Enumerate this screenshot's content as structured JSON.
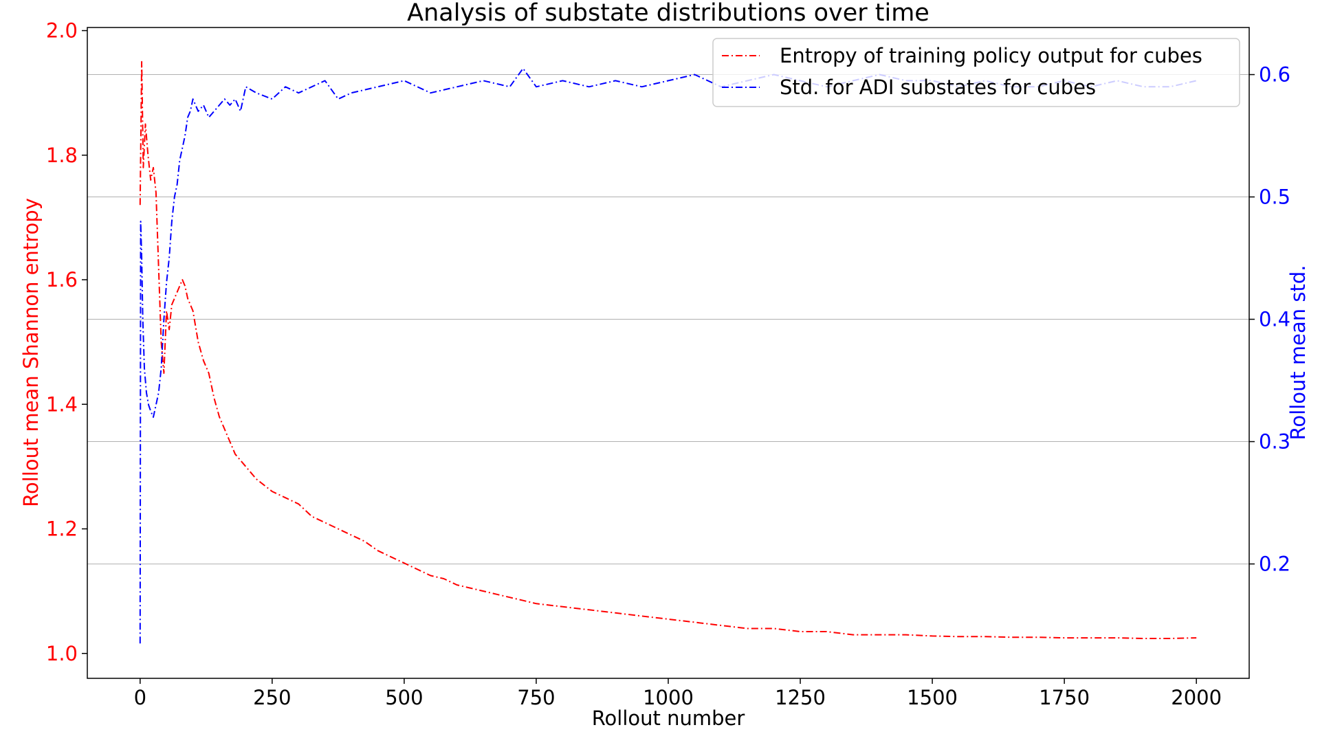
{
  "chart_data": {
    "type": "line",
    "title": "Analysis of substate distributions over time",
    "xlabel": "Rollout number",
    "ylabel_left": "Rollout mean Shannon entropy",
    "ylabel_right": "Rollout mean std.",
    "xlim": [
      -100,
      2100
    ],
    "ylim_left": [
      0.96,
      2.005
    ],
    "ylim_right": [
      0.1065,
      0.6385
    ],
    "xticks": [
      0,
      250,
      500,
      750,
      1000,
      1250,
      1500,
      1750,
      2000
    ],
    "xtick_labels": [
      "0",
      "250",
      "500",
      "750",
      "1000",
      "1250",
      "1500",
      "1750",
      "2000"
    ],
    "yticks_left": [
      1.0,
      1.2,
      1.4,
      1.6,
      1.8,
      2.0
    ],
    "ytick_labels_left": [
      "1.0",
      "1.2",
      "1.4",
      "1.6",
      "1.8",
      "2.0"
    ],
    "yticks_right": [
      0.2,
      0.3,
      0.4,
      0.5,
      0.6
    ],
    "ytick_labels_right": [
      "0.2",
      "0.3",
      "0.4",
      "0.5",
      "0.6"
    ],
    "grid": "horizontal (right axis)",
    "legend_position": "top-right",
    "series": [
      {
        "name": "Entropy of training policy output for cubes",
        "axis": "left",
        "color": "#ff0000",
        "style": "dash-dot",
        "x": [
          0,
          3,
          6,
          10,
          15,
          20,
          25,
          30,
          35,
          40,
          45,
          50,
          55,
          60,
          65,
          70,
          75,
          80,
          85,
          90,
          100,
          110,
          120,
          130,
          140,
          150,
          160,
          170,
          180,
          190,
          200,
          220,
          250,
          275,
          300,
          325,
          350,
          375,
          400,
          425,
          450,
          475,
          500,
          525,
          550,
          575,
          600,
          625,
          650,
          675,
          700,
          725,
          750,
          800,
          850,
          900,
          950,
          1000,
          1050,
          1100,
          1150,
          1200,
          1250,
          1300,
          1350,
          1400,
          1450,
          1500,
          1550,
          1600,
          1650,
          1700,
          1750,
          1800,
          1850,
          1900,
          1950,
          2000
        ],
        "y": [
          1.72,
          1.95,
          1.78,
          1.85,
          1.8,
          1.76,
          1.78,
          1.74,
          1.62,
          1.5,
          1.45,
          1.55,
          1.52,
          1.56,
          1.57,
          1.58,
          1.59,
          1.6,
          1.59,
          1.57,
          1.55,
          1.5,
          1.47,
          1.45,
          1.41,
          1.38,
          1.36,
          1.34,
          1.32,
          1.31,
          1.3,
          1.28,
          1.26,
          1.25,
          1.24,
          1.22,
          1.21,
          1.2,
          1.19,
          1.18,
          1.165,
          1.155,
          1.145,
          1.135,
          1.125,
          1.12,
          1.11,
          1.105,
          1.1,
          1.095,
          1.09,
          1.085,
          1.08,
          1.075,
          1.07,
          1.065,
          1.06,
          1.055,
          1.05,
          1.045,
          1.04,
          1.04,
          1.035,
          1.035,
          1.03,
          1.03,
          1.03,
          1.028,
          1.027,
          1.027,
          1.026,
          1.026,
          1.025,
          1.025,
          1.025,
          1.024,
          1.024,
          1.025
        ]
      },
      {
        "name": "Std. for ADI substates for cubes",
        "axis": "right",
        "color": "#0000ff",
        "style": "dash-dot",
        "x": [
          0,
          1,
          3,
          5,
          8,
          12,
          16,
          20,
          25,
          30,
          35,
          40,
          45,
          50,
          55,
          60,
          65,
          70,
          75,
          80,
          85,
          90,
          95,
          100,
          110,
          120,
          130,
          140,
          150,
          160,
          170,
          180,
          190,
          200,
          220,
          250,
          275,
          300,
          325,
          350,
          375,
          400,
          450,
          500,
          550,
          600,
          650,
          700,
          725,
          750,
          800,
          850,
          900,
          950,
          1000,
          1050,
          1100,
          1150,
          1200,
          1250,
          1300,
          1350,
          1400,
          1450,
          1500,
          1550,
          1600,
          1650,
          1700,
          1750,
          1800,
          1850,
          1900,
          1950,
          2000
        ],
        "y": [
          0.135,
          0.48,
          0.45,
          0.4,
          0.36,
          0.34,
          0.33,
          0.325,
          0.32,
          0.33,
          0.34,
          0.36,
          0.4,
          0.43,
          0.45,
          0.48,
          0.5,
          0.51,
          0.53,
          0.54,
          0.55,
          0.565,
          0.57,
          0.58,
          0.57,
          0.575,
          0.565,
          0.57,
          0.575,
          0.58,
          0.575,
          0.58,
          0.57,
          0.59,
          0.585,
          0.58,
          0.59,
          0.585,
          0.59,
          0.595,
          0.58,
          0.585,
          0.59,
          0.595,
          0.585,
          0.59,
          0.595,
          0.59,
          0.605,
          0.59,
          0.595,
          0.59,
          0.595,
          0.59,
          0.595,
          0.6,
          0.59,
          0.595,
          0.6,
          0.595,
          0.59,
          0.595,
          0.6,
          0.595,
          0.595,
          0.59,
          0.595,
          0.59,
          0.59,
          0.595,
          0.59,
          0.595,
          0.59,
          0.59,
          0.595
        ]
      }
    ]
  }
}
